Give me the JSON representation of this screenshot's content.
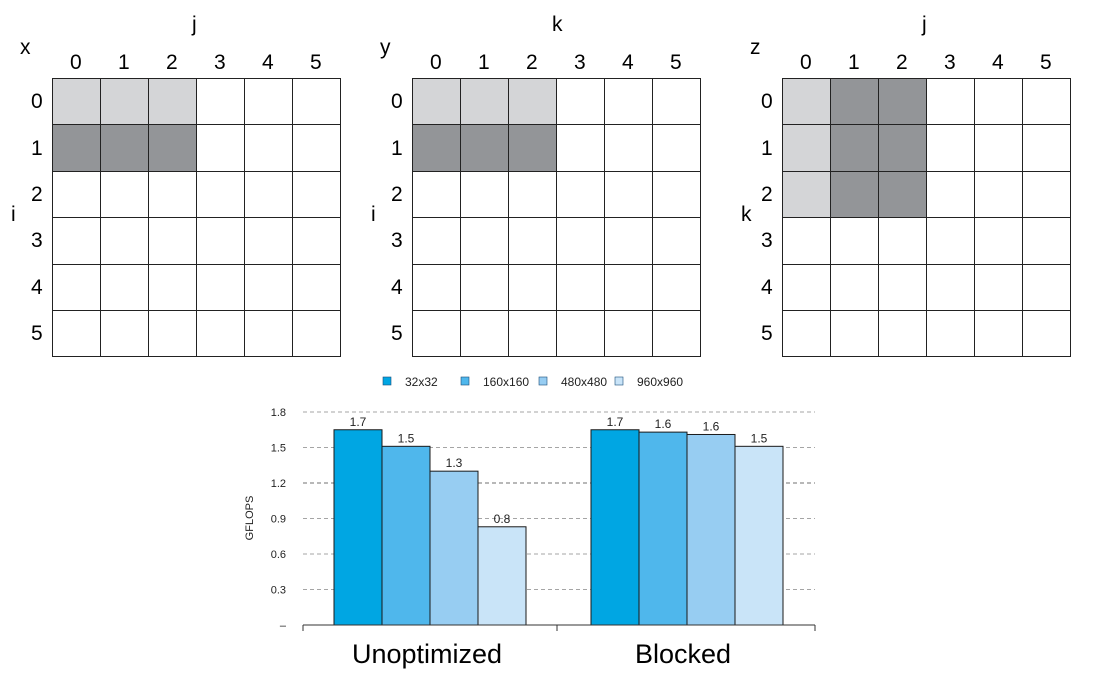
{
  "matrices": [
    {
      "name": "x",
      "col_axis": "j",
      "row_axis": "i",
      "col_labels": [
        "0",
        "1",
        "2",
        "3",
        "4",
        "5"
      ],
      "row_labels": [
        "0",
        "1",
        "2",
        "3",
        "4",
        "5"
      ],
      "light_cells": [
        [
          0,
          0
        ],
        [
          0,
          1
        ],
        [
          0,
          2
        ]
      ],
      "dark_cells": [
        [
          1,
          0
        ],
        [
          1,
          1
        ],
        [
          1,
          2
        ]
      ]
    },
    {
      "name": "y",
      "col_axis": "k",
      "row_axis": "i",
      "col_labels": [
        "0",
        "1",
        "2",
        "3",
        "4",
        "5"
      ],
      "row_labels": [
        "0",
        "1",
        "2",
        "3",
        "4",
        "5"
      ],
      "light_cells": [
        [
          0,
          0
        ],
        [
          0,
          1
        ],
        [
          0,
          2
        ]
      ],
      "dark_cells": [
        [
          1,
          0
        ],
        [
          1,
          1
        ],
        [
          1,
          2
        ]
      ]
    },
    {
      "name": "z",
      "col_axis": "j",
      "row_axis": "k",
      "col_labels": [
        "0",
        "1",
        "2",
        "3",
        "4",
        "5"
      ],
      "row_labels": [
        "0",
        "1",
        "2",
        "3",
        "4",
        "5"
      ],
      "light_cells": [
        [
          0,
          0
        ],
        [
          1,
          0
        ],
        [
          2,
          0
        ]
      ],
      "dark_cells": [
        [
          0,
          1
        ],
        [
          0,
          2
        ],
        [
          1,
          1
        ],
        [
          1,
          2
        ],
        [
          2,
          1
        ],
        [
          2,
          2
        ]
      ]
    }
  ],
  "colors": {
    "light_cell": "#d4d5d7",
    "dark_cell": "#939598",
    "grid_line": "#222222",
    "axis": "#333333",
    "gridline_dash": "#888888"
  },
  "chart_data": {
    "type": "bar",
    "categories": [
      "Unoptimized",
      "Blocked"
    ],
    "series": [
      {
        "name": "32x32",
        "values": [
          1.65,
          1.65
        ],
        "labels": [
          "1.7",
          "1.7"
        ],
        "color": "#00a6e3"
      },
      {
        "name": "160x160",
        "values": [
          1.51,
          1.63
        ],
        "labels": [
          "1.5",
          "1.6"
        ],
        "color": "#4fb7ec"
      },
      {
        "name": "480x480",
        "values": [
          1.3,
          1.61
        ],
        "labels": [
          "1.3",
          "1.6"
        ],
        "color": "#97cdf2"
      },
      {
        "name": "960x960",
        "values": [
          0.83,
          1.51
        ],
        "labels": [
          "0.8",
          "1.5"
        ],
        "color": "#c9e4f8"
      }
    ],
    "ylabel": "GFLOPS",
    "yticks": [
      "1.8",
      "1.5",
      "1.2",
      "0.9",
      "0.6",
      "0.3",
      "–"
    ],
    "ylim": [
      0,
      1.8
    ],
    "legend_position": "top",
    "grid": "dashed horizontal"
  }
}
